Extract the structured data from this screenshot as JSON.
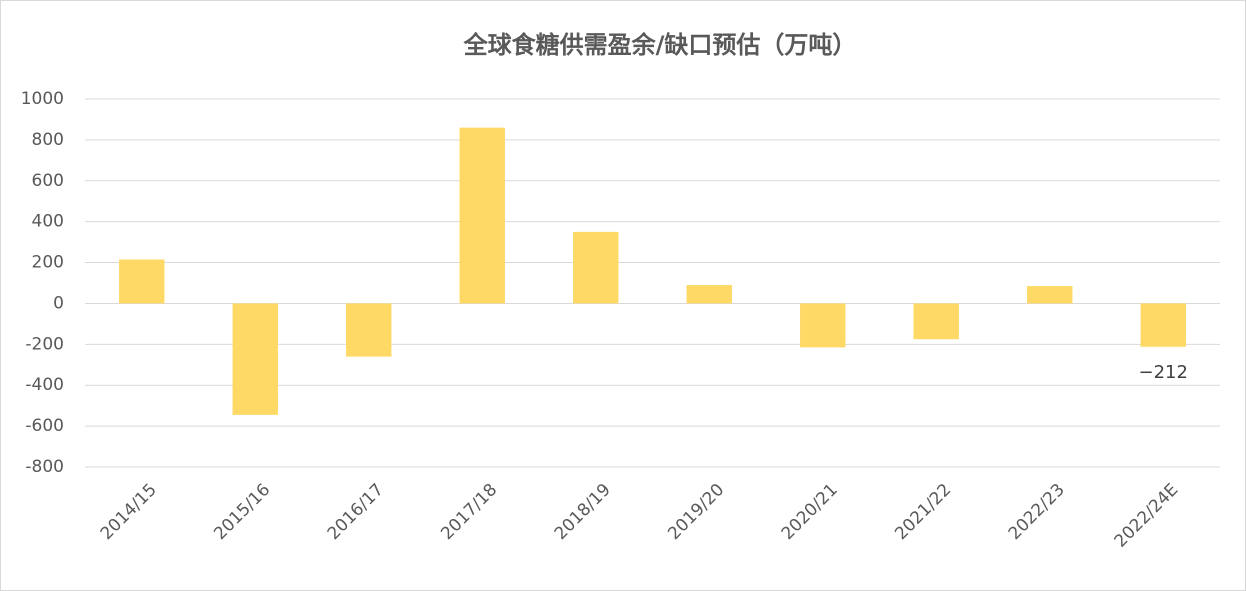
{
  "chart_data": {
    "type": "bar",
    "title": "全球食糖供需盈余/缺口预估（万吨）",
    "categories": [
      "2014/15",
      "2015/16",
      "2016/17",
      "2017/18",
      "2018/19",
      "2019/20",
      "2020/21",
      "2021/22",
      "2022/23",
      "2022/24E"
    ],
    "values": [
      215,
      -545,
      -260,
      860,
      350,
      90,
      -215,
      -175,
      85,
      -212
    ],
    "value_labels": [
      null,
      null,
      null,
      null,
      null,
      null,
      null,
      null,
      null,
      "−212"
    ],
    "color": "#ffd966",
    "ylim": [
      -800,
      1000
    ],
    "yticks": [
      -800,
      -600,
      -400,
      -200,
      0,
      200,
      400,
      600,
      800,
      1000
    ],
    "grid": true
  }
}
